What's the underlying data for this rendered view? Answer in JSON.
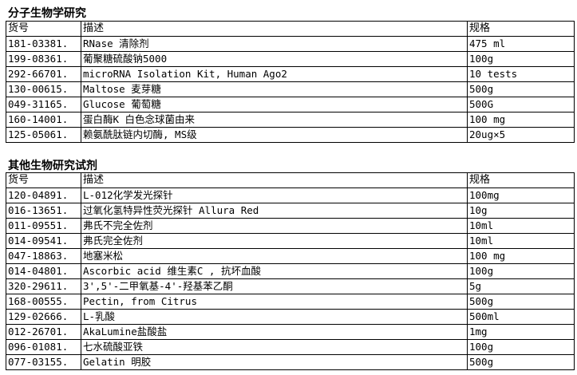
{
  "sections": [
    {
      "title": "分子生物学研究",
      "headers": [
        "货号",
        "描述",
        "规格"
      ],
      "rows": [
        [
          "181-03381.",
          "RNase 清除剂",
          "475 ml"
        ],
        [
          "199-08361.",
          "葡聚糖硫酸钠5000",
          "100g"
        ],
        [
          "292-66701.",
          "microRNA Isolation Kit, Human Ago2",
          "10 tests"
        ],
        [
          "130-00615.",
          "Maltose 麦芽糖",
          "500g"
        ],
        [
          "049-31165.",
          "Glucose 葡萄糖",
          "500G"
        ],
        [
          "160-14001.",
          "蛋白酶K 白色念球菌由来",
          "100 mg"
        ],
        [
          "125-05061.",
          "赖氨酰肽链内切酶, MS级",
          "20ug×5"
        ]
      ]
    },
    {
      "title": "其他生物研究试剂",
      "headers": [
        "货号",
        "描述",
        "规格"
      ],
      "rows": [
        [
          "120-04891.",
          "L-012化学发光探针",
          "100mg"
        ],
        [
          "016-13651.",
          "过氧化氢特异性荧光探针 Allura Red",
          "10g"
        ],
        [
          "011-09551.",
          "弗氏不完全佐剂",
          "10ml"
        ],
        [
          "014-09541.",
          "弗氏完全佐剂",
          "10ml"
        ],
        [
          "047-18863.",
          "地塞米松",
          "100 mg"
        ],
        [
          "014-04801.",
          "Ascorbic acid  维生素C , 抗坏血酸",
          "100g"
        ],
        [
          "320-29611.",
          "3',5'-二甲氧基-4'-羟基苯乙酮",
          "5g"
        ],
        [
          "168-00555.",
          "Pectin, from Citrus",
          "500g"
        ],
        [
          "129-02666.",
          "L-乳酸",
          "500ml"
        ],
        [
          "012-26701.",
          "AkaLumine盐酸盐",
          "1mg"
        ],
        [
          "096-01081.",
          "七水硫酸亚铁",
          "100g"
        ],
        [
          "077-03155.",
          "Gelatin 明胶",
          "500g"
        ]
      ]
    }
  ]
}
